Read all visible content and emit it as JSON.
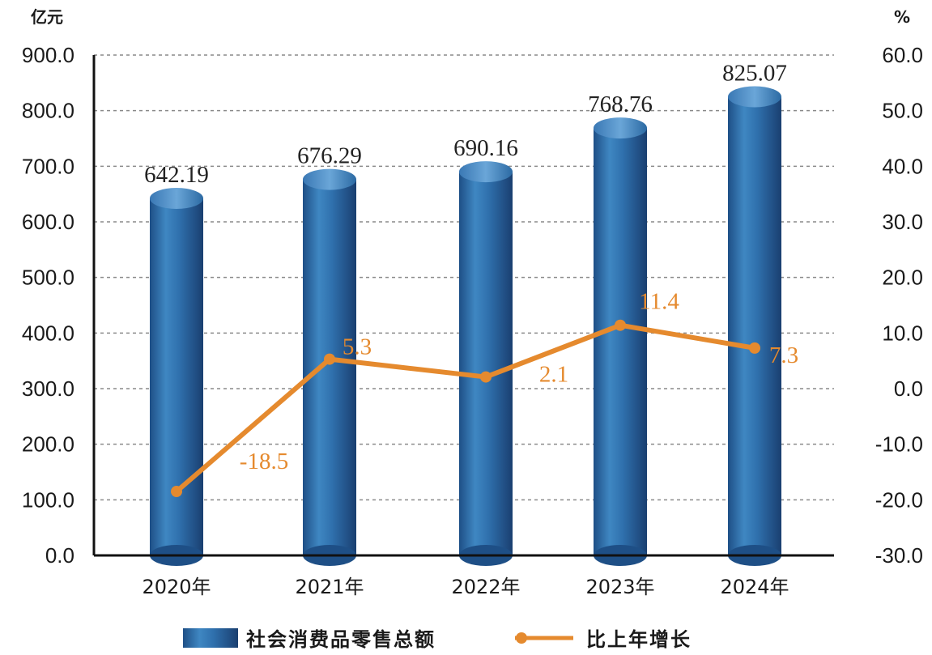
{
  "chart_data": {
    "type": "bar",
    "categories": [
      "2020年",
      "2021年",
      "2022年",
      "2023年",
      "2024年"
    ],
    "series": [
      {
        "name": "社会消费品零售总额",
        "type": "bar",
        "axis": "left",
        "values": [
          642.19,
          676.29,
          690.16,
          768.76,
          825.07
        ],
        "labels": [
          "642.19",
          "676.29",
          "690.16",
          "768.76",
          "825.07"
        ],
        "color": "#2c6aa3"
      },
      {
        "name": "比上年增长",
        "type": "line",
        "axis": "right",
        "values": [
          -18.5,
          5.3,
          2.1,
          11.4,
          7.3
        ],
        "labels": [
          "-18.5",
          "5.3",
          "2.1",
          "11.4",
          "7.3"
        ],
        "color": "#e58a2e"
      }
    ],
    "y_left": {
      "unit": "亿元",
      "range": [
        0,
        900
      ],
      "ticks": [
        "0.0",
        "100.0",
        "200.0",
        "300.0",
        "400.0",
        "500.0",
        "600.0",
        "700.0",
        "800.0",
        "900.0"
      ]
    },
    "y_right": {
      "unit": "%",
      "range": [
        -30,
        60
      ],
      "ticks": [
        "-30.0",
        "-20.0",
        "-10.0",
        "0.0",
        "10.0",
        "20.0",
        "30.0",
        "40.0",
        "50.0",
        "60.0"
      ]
    },
    "grid": true,
    "legend_position": "bottom-center"
  }
}
